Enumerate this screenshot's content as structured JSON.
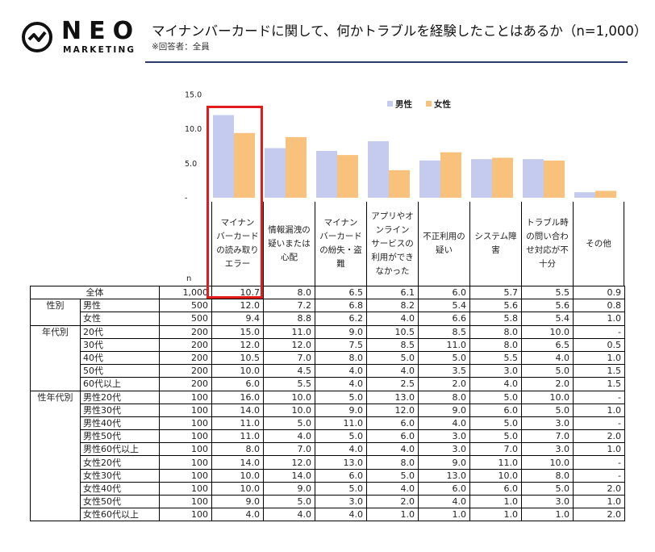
{
  "logo": {
    "word": "NEO",
    "sub": "MARKETING"
  },
  "title": "マイナンバーカードに関して、何かトラブルを経験したことはあるか（n=1,000）",
  "subtitle": "※回答者：全員",
  "colors": {
    "male": "#c5cbee",
    "female": "#f8c27d",
    "rule": "#2c3a6b",
    "highlight": "#e41b1b"
  },
  "chart_data": {
    "type": "bar",
    "title": "マイナンバーカードに関して、何かトラブルを経験したことはあるか（n=1,000）",
    "categories": [
      "マイナンバーカードの読み取りエラー",
      "情報漏洩の疑いまたは心配",
      "マイナンバーカードの紛失・盗難",
      "アプリやオンラインサービスの利用ができなかった",
      "不正利用の疑い",
      "システム障害",
      "トラブル時の問い合わせ対応が不十分",
      "その他"
    ],
    "category_lines": [
      [
        "マイナン",
        "バーカード",
        "の読み取り",
        "エラー"
      ],
      [
        "情報漏洩の",
        "疑いまたは",
        "心配"
      ],
      [
        "マイナン",
        "バーカード",
        "の紛失・盗",
        "難"
      ],
      [
        "アプリやオ",
        "ンライン",
        "サービスの",
        "利用ができ",
        "なかった"
      ],
      [
        "不正利用の",
        "疑い"
      ],
      [
        "システム障",
        "害"
      ],
      [
        "トラブル時",
        "の問い合わ",
        "せ対応が不",
        "十分"
      ],
      [
        "その他"
      ]
    ],
    "series": [
      {
        "name": "男性",
        "values": [
          12.0,
          7.2,
          6.8,
          8.2,
          5.4,
          5.6,
          5.6,
          0.8
        ]
      },
      {
        "name": "女性",
        "values": [
          9.4,
          8.8,
          6.2,
          4.0,
          6.6,
          5.8,
          5.4,
          1.0
        ]
      }
    ],
    "yticks": [
      "15.0",
      "10.0",
      "5.0",
      "-"
    ],
    "ylim": [
      0,
      15
    ],
    "legend": "top-right",
    "xlabel": "",
    "ylabel": ""
  },
  "table": {
    "n_header": "n",
    "total": {
      "label": "全体",
      "n": "1,000",
      "values": [
        "10.7",
        "8.0",
        "6.5",
        "6.1",
        "6.0",
        "5.7",
        "5.5",
        "0.9"
      ]
    },
    "groups": [
      {
        "group": "性別",
        "rows": [
          {
            "label": "男性",
            "n": "500",
            "values": [
              "12.0",
              "7.2",
              "6.8",
              "8.2",
              "5.4",
              "5.6",
              "5.6",
              "0.8"
            ]
          },
          {
            "label": "女性",
            "n": "500",
            "values": [
              "9.4",
              "8.8",
              "6.2",
              "4.0",
              "6.6",
              "5.8",
              "5.4",
              "1.0"
            ]
          }
        ]
      },
      {
        "group": "年代別",
        "rows": [
          {
            "label": "20代",
            "n": "200",
            "values": [
              "15.0",
              "11.0",
              "9.0",
              "10.5",
              "8.5",
              "8.0",
              "10.0",
              "-"
            ]
          },
          {
            "label": "30代",
            "n": "200",
            "values": [
              "12.0",
              "12.0",
              "7.5",
              "8.5",
              "11.0",
              "8.0",
              "6.5",
              "0.5"
            ]
          },
          {
            "label": "40代",
            "n": "200",
            "values": [
              "10.5",
              "7.0",
              "8.0",
              "5.0",
              "5.0",
              "5.5",
              "4.0",
              "1.0"
            ]
          },
          {
            "label": "50代",
            "n": "200",
            "values": [
              "10.0",
              "4.5",
              "4.0",
              "4.0",
              "3.5",
              "3.0",
              "5.0",
              "1.5"
            ]
          },
          {
            "label": "60代以上",
            "n": "200",
            "values": [
              "6.0",
              "5.5",
              "4.0",
              "2.5",
              "2.0",
              "4.0",
              "2.0",
              "1.5"
            ]
          }
        ]
      },
      {
        "group": "性年代別",
        "rows": [
          {
            "label": "男性20代",
            "n": "100",
            "values": [
              "16.0",
              "10.0",
              "5.0",
              "13.0",
              "8.0",
              "5.0",
              "10.0",
              "-"
            ]
          },
          {
            "label": "男性30代",
            "n": "100",
            "values": [
              "14.0",
              "10.0",
              "9.0",
              "12.0",
              "9.0",
              "6.0",
              "5.0",
              "1.0"
            ]
          },
          {
            "label": "男性40代",
            "n": "100",
            "values": [
              "11.0",
              "5.0",
              "11.0",
              "6.0",
              "4.0",
              "5.0",
              "3.0",
              "-"
            ]
          },
          {
            "label": "男性50代",
            "n": "100",
            "values": [
              "11.0",
              "4.0",
              "5.0",
              "6.0",
              "3.0",
              "5.0",
              "7.0",
              "2.0"
            ]
          },
          {
            "label": "男性60代以上",
            "n": "100",
            "values": [
              "8.0",
              "7.0",
              "4.0",
              "4.0",
              "3.0",
              "7.0",
              "3.0",
              "1.0"
            ]
          },
          {
            "label": "女性20代",
            "n": "100",
            "values": [
              "14.0",
              "12.0",
              "13.0",
              "8.0",
              "9.0",
              "11.0",
              "10.0",
              "-"
            ]
          },
          {
            "label": "女性30代",
            "n": "100",
            "values": [
              "10.0",
              "14.0",
              "6.0",
              "5.0",
              "13.0",
              "10.0",
              "8.0",
              "-"
            ]
          },
          {
            "label": "女性40代",
            "n": "100",
            "values": [
              "10.0",
              "9.0",
              "5.0",
              "4.0",
              "6.0",
              "6.0",
              "5.0",
              "2.0"
            ]
          },
          {
            "label": "女性50代",
            "n": "100",
            "values": [
              "9.0",
              "5.0",
              "3.0",
              "2.0",
              "4.0",
              "1.0",
              "3.0",
              "1.0"
            ]
          },
          {
            "label": "女性60代以上",
            "n": "100",
            "values": [
              "4.0",
              "4.0",
              "4.0",
              "1.0",
              "1.0",
              "1.0",
              "1.0",
              "2.0"
            ]
          }
        ]
      }
    ]
  }
}
